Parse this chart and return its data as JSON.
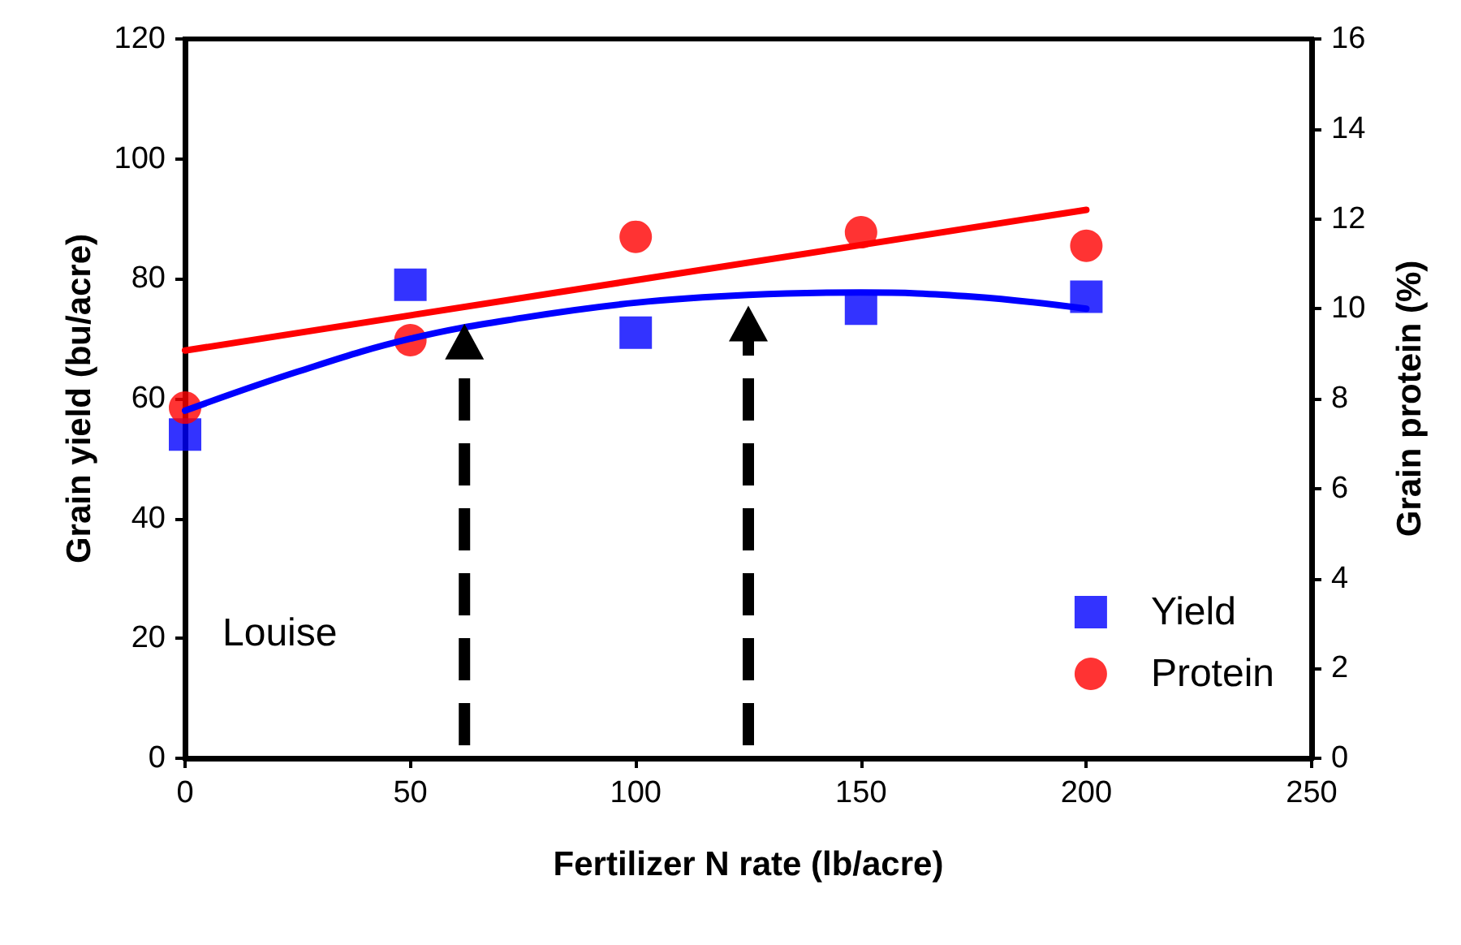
{
  "chart_data": {
    "type": "scatter",
    "xlabel": "Fertilizer N rate (lb/acre)",
    "ylabel": "Grain yield (bu/acre)",
    "y2label": "Grain protein (%)",
    "xlim": [
      0,
      250
    ],
    "xticks": [
      0,
      50,
      100,
      150,
      200,
      250
    ],
    "ylim": [
      0,
      120
    ],
    "yticks": [
      0,
      20,
      40,
      60,
      80,
      100,
      120
    ],
    "y2lim": [
      0,
      16
    ],
    "y2ticks": [
      0,
      2,
      4,
      6,
      8,
      10,
      12,
      14,
      16
    ],
    "grid": false,
    "legend": "bottom right",
    "annotations": [
      "Louise"
    ],
    "series": [
      {
        "name": "Yield",
        "marker": "square",
        "color": "#0000ff",
        "x": [
          0,
          50,
          100,
          150,
          200
        ],
        "values": [
          54,
          79,
          71,
          75,
          77
        ]
      },
      {
        "name": "Protein",
        "marker": "circle",
        "color": "#ff0000",
        "axis": "y2",
        "x": [
          0,
          50,
          100,
          150,
          200
        ],
        "values": [
          7.8,
          9.3,
          11.6,
          11.7,
          11.4
        ]
      },
      {
        "type": "line",
        "marker": "none",
        "color": "#0000ff",
        "x": [
          0,
          25,
          50,
          75,
          100,
          125,
          150,
          175,
          200
        ],
        "values": [
          58,
          64.5,
          70,
          73.5,
          76,
          77.3,
          77.7,
          77,
          75
        ]
      },
      {
        "type": "line",
        "marker": "none",
        "color": "#ff0000",
        "axis": "y2",
        "x": [
          0,
          200
        ],
        "values": [
          9.07,
          12.2
        ]
      }
    ]
  }
}
